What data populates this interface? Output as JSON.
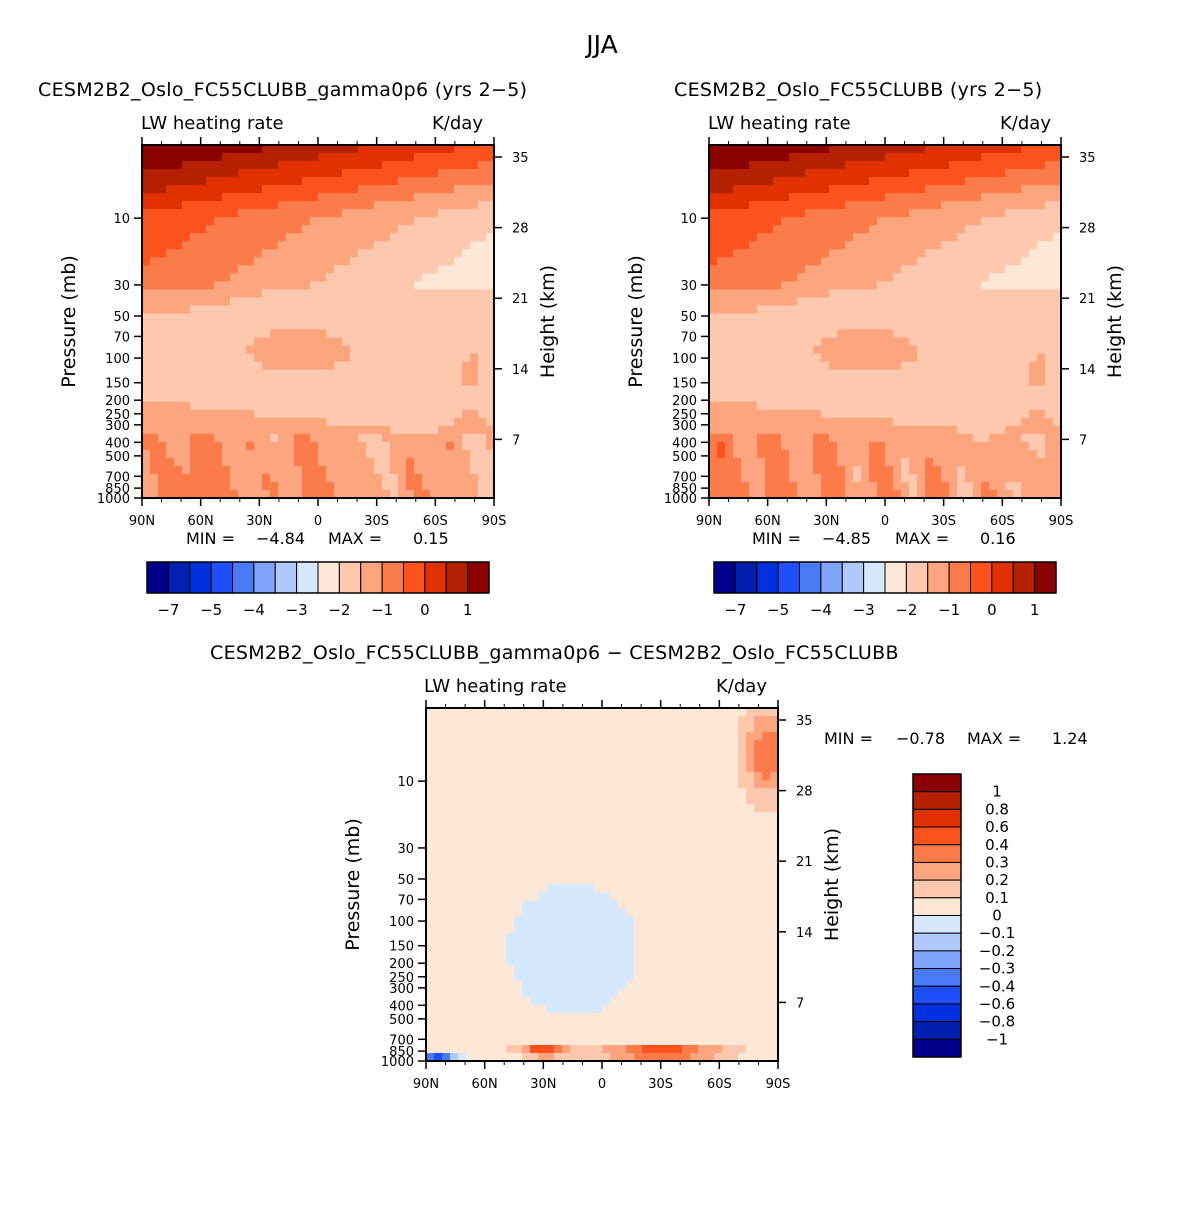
{
  "figure": {
    "title": "JJA"
  },
  "palettes": {
    "main16": [
      "#00008b",
      "#0021b0",
      "#0030e0",
      "#1f4ff8",
      "#4a7bf7",
      "#7fa4fa",
      "#b0c9fb",
      "#d6e8fd",
      "#fde8d8",
      "#fdc8ae",
      "#fca57e",
      "#fb7b4b",
      "#fb521e",
      "#e13100",
      "#b52100",
      "#8b0000"
    ],
    "diff16": [
      "#00008b",
      "#0021b0",
      "#0030e0",
      "#1f4ff8",
      "#4a7bf7",
      "#7fa4fa",
      "#b0c9fb",
      "#d6e8fd",
      "#fde8d8",
      "#fdc8ae",
      "#fca57e",
      "#fb7b4b",
      "#fb521e",
      "#e13100",
      "#b52100",
      "#8b0000"
    ]
  },
  "chart_data": [
    {
      "type": "heatmap",
      "id": "panel-1",
      "title": "CESM2B2_Oslo_FC55CLUBB_gamma0p6 (yrs 2−5)",
      "left_string": "LW heating rate",
      "right_string": "K/day",
      "xlabel": "",
      "ylabel": "Pressure (mb)",
      "ylabel_right": "Height (km)",
      "x_ticks": [
        "90N",
        "60N",
        "30N",
        "0",
        "30S",
        "60S",
        "90S"
      ],
      "x_range": [
        90,
        -90
      ],
      "y_ticks": [
        "10",
        "30",
        "50",
        "70",
        "100",
        "150",
        "200",
        "250",
        "300",
        "400",
        "500",
        "700",
        "850",
        "1000"
      ],
      "y_tick_values": [
        10,
        30,
        50,
        70,
        100,
        150,
        200,
        250,
        300,
        400,
        500,
        700,
        850,
        1000
      ],
      "y_range_mb": [
        3,
        1000
      ],
      "y_right_ticks": [
        "35",
        "28",
        "21",
        "14",
        "7"
      ],
      "min_label": "MIN =",
      "min_value": "−4.84",
      "max_label": "MAX =",
      "max_value": "0.15",
      "colorbar_labels": [
        "−7",
        "−5",
        "−4",
        "−3",
        "−2",
        "−1",
        "0",
        "1"
      ],
      "colorbar_levels": [
        -7,
        -5,
        -4,
        -3,
        -2,
        -1,
        0,
        1
      ],
      "features": "Negative (cooling) in upper stratosphere near 90N, peak ~-1.3 K/day core near 100 mb between 30N-20S, strong positive warming region near 100-300 mb at 60S-90S"
    },
    {
      "type": "heatmap",
      "id": "panel-2",
      "title": "CESM2B2_Oslo_FC55CLUBB (yrs 2−5)",
      "left_string": "LW heating rate",
      "right_string": "K/day",
      "xlabel": "",
      "ylabel": "Pressure (mb)",
      "ylabel_right": "Height (km)",
      "x_ticks": [
        "90N",
        "60N",
        "30N",
        "0",
        "30S",
        "60S",
        "90S"
      ],
      "x_range": [
        90,
        -90
      ],
      "y_ticks": [
        "10",
        "30",
        "50",
        "70",
        "100",
        "150",
        "200",
        "250",
        "300",
        "400",
        "500",
        "700",
        "850",
        "1000"
      ],
      "y_tick_values": [
        10,
        30,
        50,
        70,
        100,
        150,
        200,
        250,
        300,
        400,
        500,
        700,
        850,
        1000
      ],
      "y_range_mb": [
        3,
        1000
      ],
      "y_right_ticks": [
        "35",
        "28",
        "21",
        "14",
        "7"
      ],
      "min_label": "MIN =",
      "min_value": "−4.85",
      "max_label": "MAX =",
      "max_value": "0.16",
      "colorbar_labels": [
        "−7",
        "−5",
        "−4",
        "−3",
        "−2",
        "−1",
        "0",
        "1"
      ],
      "colorbar_levels": [
        -7,
        -5,
        -4,
        -3,
        -2,
        -1,
        0,
        1
      ]
    },
    {
      "type": "heatmap",
      "id": "panel-diff",
      "title": "CESM2B2_Oslo_FC55CLUBB_gamma0p6 − CESM2B2_Oslo_FC55CLUBB",
      "left_string": "LW heating rate",
      "right_string": "K/day",
      "xlabel": "",
      "ylabel": "Pressure (mb)",
      "ylabel_right": "Height (km)",
      "x_ticks": [
        "90N",
        "60N",
        "30N",
        "0",
        "30S",
        "60S",
        "90S"
      ],
      "x_range": [
        90,
        -90
      ],
      "y_ticks": [
        "10",
        "30",
        "50",
        "70",
        "100",
        "150",
        "200",
        "250",
        "300",
        "400",
        "500",
        "700",
        "850",
        "1000"
      ],
      "y_tick_values": [
        10,
        30,
        50,
        70,
        100,
        150,
        200,
        250,
        300,
        400,
        500,
        700,
        850,
        1000
      ],
      "y_range_mb": [
        3,
        1000
      ],
      "y_right_ticks": [
        "35",
        "28",
        "21",
        "14",
        "7"
      ],
      "min_label": "MIN =",
      "min_value": "−0.78",
      "max_label": "MAX =",
      "max_value": "1.24",
      "colorbar_labels": [
        "1",
        "0.8",
        "0.6",
        "0.4",
        "0.3",
        "0.2",
        "0.1",
        "0",
        "−0.1",
        "−0.2",
        "−0.3",
        "−0.4",
        "−0.6",
        "−0.8",
        "−1"
      ],
      "colorbar_levels": [
        1,
        0.8,
        0.6,
        0.4,
        0.3,
        0.2,
        0.1,
        0,
        -0.1,
        -0.2,
        -0.3,
        -0.4,
        -0.6,
        -0.8,
        -1
      ],
      "features": "Mostly 0 to 0.1 K/day; -0.1 to 0 region through mid-troposphere and stratosphere between 60N and 20S; 0.1-0.3 near 3-15 mb at 75S-90S; positive 0.4-0.8 near 850 mb 40N-20N and 0-60S; negative -0.3 to -0.6 near surface at 90N-70N"
    }
  ]
}
